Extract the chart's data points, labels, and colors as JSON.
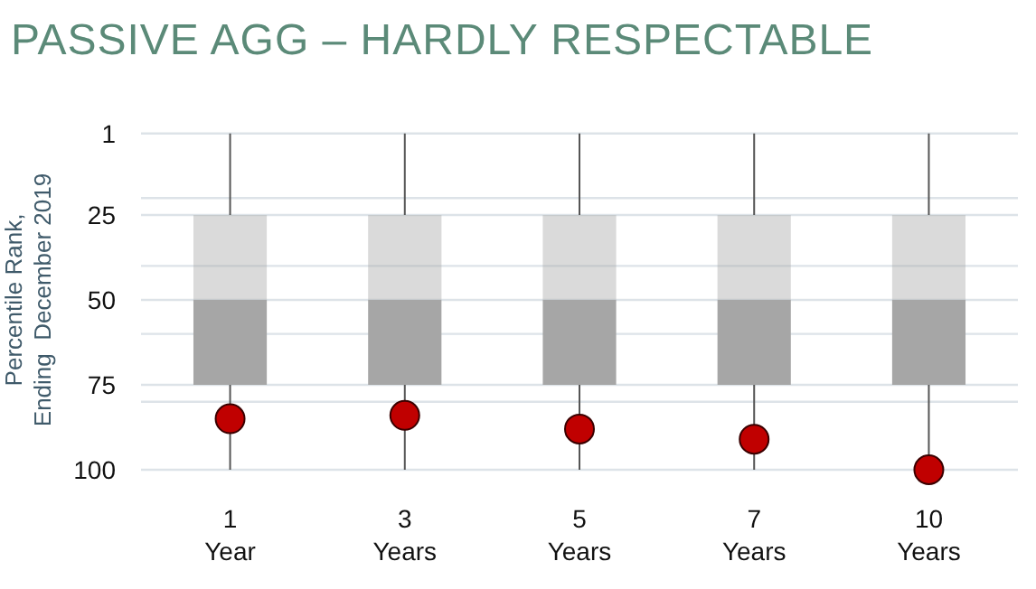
{
  "chart_data": {
    "type": "box",
    "title": "PASSIVE AGG – HARDLY RESPECTABLE",
    "ylabel": "Percentile Rank,\nEnding  December 2019",
    "categories": [
      "1\nYear",
      "3\nYears",
      "5\nYears",
      "7\nYears",
      "10\nYears"
    ],
    "series": [
      {
        "color": "#a6a6a6",
        "boxes": [
          {
            "low": 1,
            "q1": 25,
            "median": 50,
            "q3": 75,
            "high": 100
          },
          {
            "low": 1,
            "q1": 25,
            "median": 50,
            "q3": 75,
            "high": 100
          },
          {
            "low": 1,
            "q1": 25,
            "median": 50,
            "q3": 75,
            "high": 100
          },
          {
            "low": 1,
            "q1": 25,
            "median": 50,
            "q3": 75,
            "high": 100
          },
          {
            "low": 1,
            "q1": 25,
            "median": 50,
            "q3": 75,
            "high": 100
          }
        ]
      },
      {
        "type": "scatter",
        "color": "#c00000",
        "x": [
          "1\nYear",
          "3\nYears",
          "5\nYears",
          "7\nYears",
          "10\nYears"
        ],
        "values": [
          85,
          84,
          88,
          91,
          100
        ]
      }
    ],
    "ylim": [
      100,
      0
    ],
    "yticks": [
      1,
      {
        "value": 20,
        "label": null
      },
      25,
      {
        "value": 40,
        "label": null
      },
      50,
      {
        "value": 60,
        "label": null
      },
      75,
      {
        "value": 80,
        "label": null
      },
      100
    ],
    "grid": "y",
    "marker": "circle"
  }
}
